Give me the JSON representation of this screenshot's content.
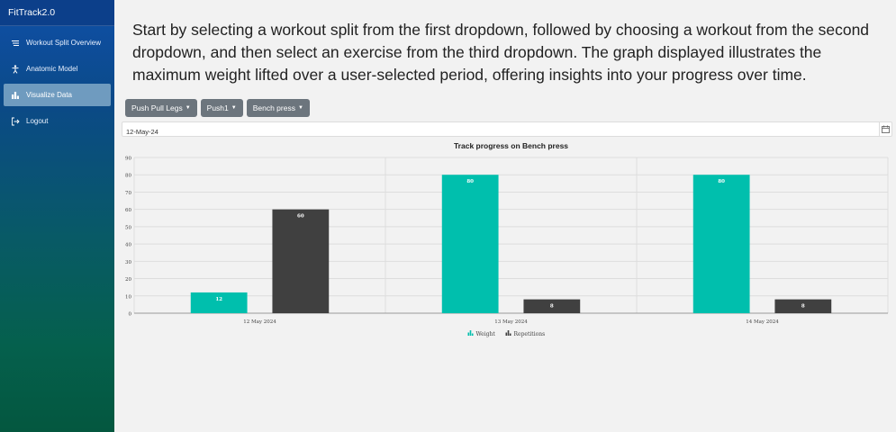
{
  "sidebar": {
    "brand": "FitTrack2.0",
    "items": [
      {
        "label": "Workout Split Overview",
        "icon": "list-icon",
        "active": false
      },
      {
        "label": "Anatomic Model",
        "icon": "person-icon",
        "active": false
      },
      {
        "label": "Visualize Data",
        "icon": "chart-icon",
        "active": true
      },
      {
        "label": "Logout",
        "icon": "logout-icon",
        "active": false
      }
    ]
  },
  "main": {
    "intro": "Start by selecting a workout split from the first dropdown, followed by choosing a workout from the second dropdown, and then select an exercise from the third dropdown. The graph displayed illustrates the maximum weight lifted over a user-selected period, offering insights into your progress over time.",
    "dropdowns": {
      "split": "Push Pull Legs",
      "workout": "Push1",
      "exercise": "Bench press"
    },
    "date_value": "12-May-24"
  },
  "colors": {
    "weight": "#00bfad",
    "repetitions": "#404040",
    "sidebar_active": "#6f9bbf",
    "button": "#6c757d"
  },
  "chart_data": {
    "type": "bar",
    "title": "Track progress on Bench press",
    "categories": [
      "12 May 2024",
      "13 May 2024",
      "14 May 2024"
    ],
    "series": [
      {
        "name": "Weight",
        "values": [
          12,
          80,
          80
        ]
      },
      {
        "name": "Repetitions",
        "values": [
          60,
          8,
          8
        ]
      }
    ],
    "ylim": [
      0,
      90
    ],
    "yticks": [
      0,
      10,
      20,
      30,
      40,
      50,
      60,
      70,
      80,
      90
    ],
    "grid": true,
    "legend": "bottom-center"
  }
}
